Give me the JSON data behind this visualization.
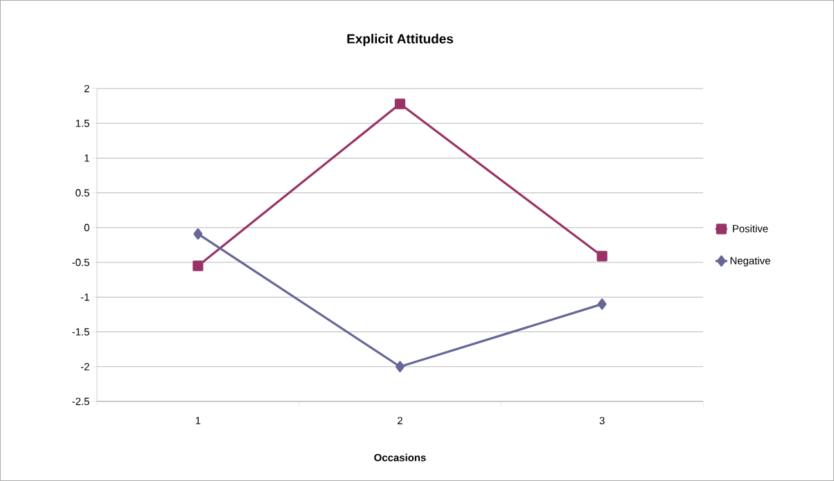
{
  "chart_data": {
    "type": "line",
    "title": "Explicit Attitudes",
    "xlabel": "Occasions",
    "categories": [
      "1",
      "2",
      "3"
    ],
    "series": [
      {
        "name": "Positive",
        "color": "#993366",
        "marker": "square",
        "values": [
          -0.55,
          1.78,
          -0.41
        ]
      },
      {
        "name": "Negative",
        "color": "#666699",
        "marker": "diamond",
        "values": [
          -0.09,
          -2.0,
          -1.1
        ]
      }
    ],
    "ylim": [
      -2.5,
      2
    ],
    "yticks": [
      -2.5,
      -2,
      -1.5,
      -1,
      -0.5,
      0,
      0.5,
      1,
      1.5,
      2
    ],
    "grid": "y",
    "legend": "right",
    "line_style": "solid"
  }
}
